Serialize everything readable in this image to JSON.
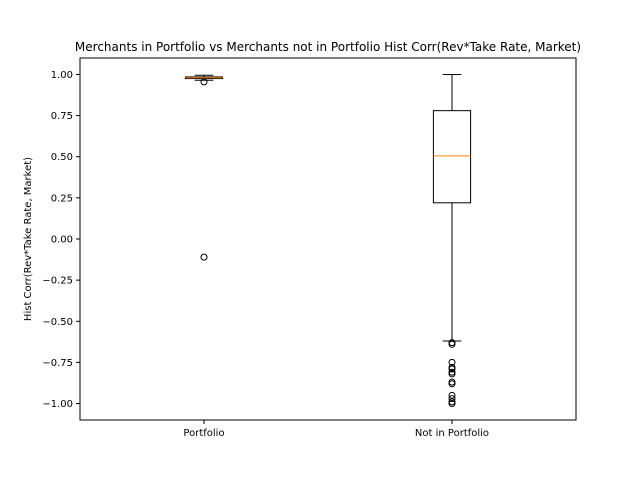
{
  "chart_data": {
    "type": "box",
    "title": "Merchants in Portfolio vs Merchants not in Portfolio Hist Corr(Rev*Take Rate, Market)",
    "xlabel": "",
    "ylabel": "Hist Corr(Rev*Take Rate, Market)",
    "ylim": [
      -1.1,
      1.1
    ],
    "yticks": [
      -1.0,
      -0.75,
      -0.5,
      -0.25,
      0.0,
      0.25,
      0.5,
      0.75,
      1.0
    ],
    "ytick_labels": [
      "−1.00",
      "−0.75",
      "−0.50",
      "−0.25",
      "0.00",
      "0.25",
      "0.50",
      "0.75",
      "1.00"
    ],
    "categories": [
      "Portfolio",
      "Not in Portfolio"
    ],
    "grid": false,
    "colors": {
      "box": "#000000",
      "median": "#ff7f0e",
      "outlier": "#000000"
    },
    "boxes": [
      {
        "label": "Portfolio",
        "whisker_low": 0.965,
        "q1": 0.975,
        "median": 0.98,
        "q3": 0.985,
        "whisker_high": 0.995,
        "outliers": [
          0.955,
          -0.11
        ]
      },
      {
        "label": "Not in Portfolio",
        "whisker_low": -0.62,
        "q1": 0.22,
        "median": 0.505,
        "q3": 0.78,
        "whisker_high": 1.0,
        "outliers": [
          -0.63,
          -0.64,
          -0.75,
          -0.78,
          -0.79,
          -0.81,
          -0.82,
          -0.87,
          -0.88,
          -0.95,
          -0.97,
          -0.99,
          -1.0
        ]
      }
    ]
  }
}
